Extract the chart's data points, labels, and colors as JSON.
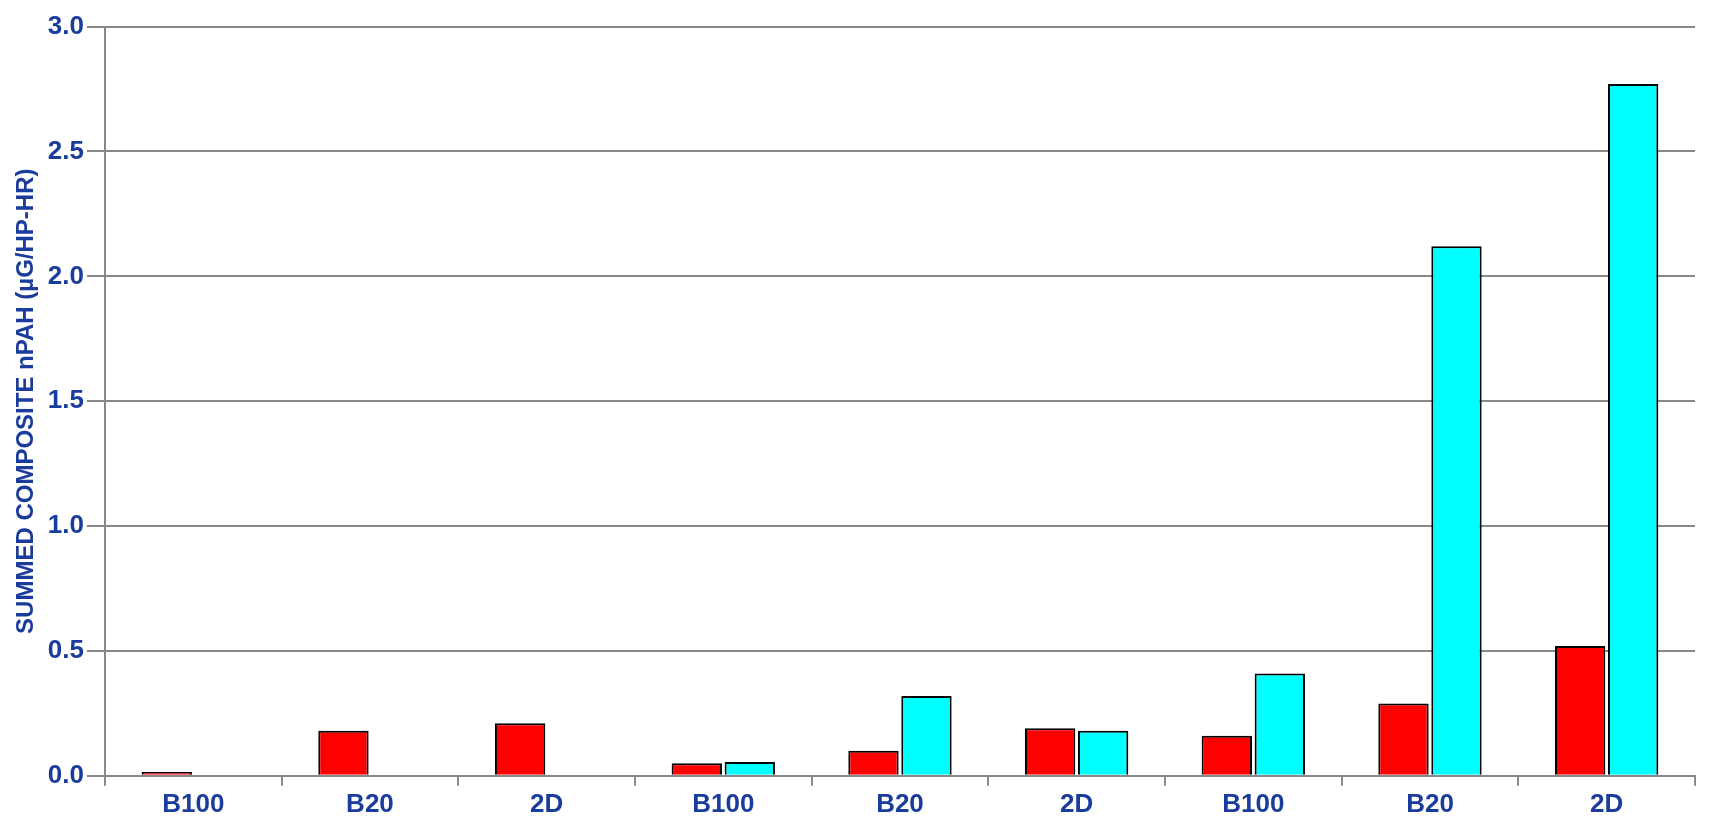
{
  "chart_data": {
    "type": "bar",
    "ylabel": "SUMMED COMPOSITE nPAH (µG/HP-HR)",
    "categories": [
      "B100",
      "B20",
      "2D",
      "B100",
      "B20",
      "2D",
      "B100",
      "B20",
      "2D"
    ],
    "series": [
      {
        "color": "#ff0000",
        "values": [
          0.015,
          0.18,
          0.21,
          0.05,
          0.1,
          0.19,
          0.16,
          0.29,
          0.52
        ]
      },
      {
        "color": "#00ffff",
        "values": [
          null,
          null,
          null,
          0.055,
          0.32,
          0.18,
          0.41,
          2.12,
          2.77
        ]
      }
    ],
    "ylim": [
      0,
      3
    ],
    "yticks": [
      {
        "value": 0,
        "label": "0.0"
      },
      {
        "value": 0.5,
        "label": "0.5"
      },
      {
        "value": 1,
        "label": "1.0"
      },
      {
        "value": 1.5,
        "label": "1.5"
      },
      {
        "value": 2,
        "label": "2.0"
      },
      {
        "value": 2.5,
        "label": "2.5"
      },
      {
        "value": 3,
        "label": "3.0"
      }
    ],
    "grid": "y"
  }
}
